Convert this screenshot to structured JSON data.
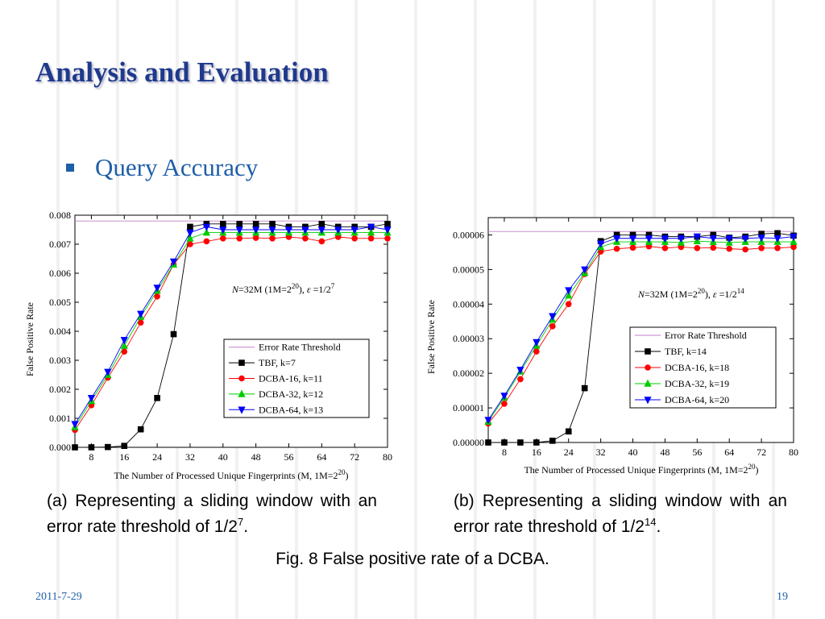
{
  "title": "Analysis and Evaluation",
  "bullet": "Query Accuracy",
  "captions": [
    [
      "(a) Representing a sliding window with an error rate threshold of  1/2",
      "7",
      "."
    ],
    [
      "(b) Representing a sliding window with an error rate threshold of  1/2",
      "14",
      "."
    ]
  ],
  "figure_caption": "Fig. 8  False positive rate of a DCBA.",
  "date": "2011-7-29",
  "page_number": "19",
  "chart_data": [
    {
      "type": "line",
      "ylabel": "False Positive Rate",
      "xlabel": [
        "The Number of Processed Unique Fingerprints (M, 1M=2",
        "20",
        ")"
      ],
      "annotation": [
        "N",
        "=32M (1M=2",
        "20",
        "), ",
        "ε",
        " =1/2",
        "7"
      ],
      "x": [
        4,
        8,
        12,
        16,
        20,
        24,
        28,
        32,
        36,
        40,
        44,
        48,
        52,
        56,
        60,
        64,
        68,
        72,
        76,
        80
      ],
      "xlim": [
        4,
        80
      ],
      "xticks": [
        8,
        16,
        24,
        32,
        40,
        48,
        56,
        64,
        72,
        80
      ],
      "ylim": [
        0,
        0.008
      ],
      "yticks": [
        {
          "value": 0,
          "label": "0.000"
        },
        0.001,
        0.002,
        0.003,
        0.004,
        0.005,
        0.006,
        0.007,
        0.008
      ],
      "series": [
        {
          "name": "Error Rate Threshold",
          "color": "#c080c8",
          "marker": "none",
          "values": [
            0.0078,
            0.0078,
            0.0078,
            0.0078,
            0.0078,
            0.0078,
            0.0078,
            0.0078,
            0.0078,
            0.0078,
            0.0078,
            0.0078,
            0.0078,
            0.0078,
            0.0078,
            0.0078,
            0.0078,
            0.0078,
            0.0078,
            0.0078
          ]
        },
        {
          "name": "TBF, k=7",
          "color": "#000000",
          "marker": "square",
          "values": [
            0,
            0,
            1e-05,
            5e-05,
            0.00062,
            0.0017,
            0.0039,
            0.0076,
            0.0077,
            0.0077,
            0.0077,
            0.0077,
            0.0077,
            0.0076,
            0.0076,
            0.0077,
            0.0076,
            0.0076,
            0.0076,
            0.0077
          ]
        },
        {
          "name": "DCBA-16, k=11",
          "color": "#ff0000",
          "marker": "circle",
          "values": [
            0.0006,
            0.00145,
            0.0024,
            0.0033,
            0.0043,
            0.0052,
            0.0063,
            0.007,
            0.0071,
            0.0072,
            0.0072,
            0.00722,
            0.0072,
            0.00725,
            0.0072,
            0.0071,
            0.00725,
            0.0072,
            0.0072,
            0.0072
          ]
        },
        {
          "name": "DCBA-32, k=12",
          "color": "#00cc00",
          "marker": "triangle-up",
          "values": [
            0.0007,
            0.0016,
            0.0025,
            0.0035,
            0.0045,
            0.0054,
            0.0063,
            0.0072,
            0.0074,
            0.0074,
            0.0074,
            0.0074,
            0.0074,
            0.0074,
            0.0074,
            0.0074,
            0.0074,
            0.0074,
            0.0074,
            0.0074
          ]
        },
        {
          "name": "DCBA-64, k=13",
          "color": "#0000ff",
          "marker": "triangle-down",
          "values": [
            0.0008,
            0.0017,
            0.0026,
            0.0037,
            0.0046,
            0.0055,
            0.0064,
            0.0074,
            0.0076,
            0.0075,
            0.0075,
            0.0075,
            0.0075,
            0.0075,
            0.0075,
            0.0075,
            0.0075,
            0.0075,
            0.0076,
            0.0075
          ]
        }
      ]
    },
    {
      "type": "line",
      "ylabel": "False Positive Rate",
      "xlabel": [
        "The Number of Processed Unique Fingerprints (M, 1M=2",
        "20",
        ")"
      ],
      "annotation": [
        "N",
        "=32M (1M=2",
        "20",
        "), ",
        "ε",
        " =1/2",
        "14"
      ],
      "x": [
        4,
        8,
        12,
        16,
        20,
        24,
        28,
        32,
        36,
        40,
        44,
        48,
        52,
        56,
        60,
        64,
        68,
        72,
        76,
        80
      ],
      "xlim": [
        4,
        80
      ],
      "xticks": [
        8,
        16,
        24,
        32,
        40,
        48,
        56,
        64,
        72,
        80
      ],
      "ylim": [
        0,
        6.5e-05
      ],
      "yticks": [
        {
          "value": 0,
          "label": "0.00000"
        },
        1e-05,
        2e-05,
        3e-05,
        4e-05,
        5e-05,
        6e-05
      ],
      "series": [
        {
          "name": "Error Rate Threshold",
          "color": "#c080c8",
          "marker": "none",
          "values": [
            6.1e-05,
            6.1e-05,
            6.1e-05,
            6.1e-05,
            6.1e-05,
            6.1e-05,
            6.1e-05,
            6.1e-05,
            6.1e-05,
            6.1e-05,
            6.1e-05,
            6.1e-05,
            6.1e-05,
            6.1e-05,
            6.1e-05,
            6.1e-05,
            6.1e-05,
            6.1e-05,
            6.1e-05,
            6.1e-05
          ]
        },
        {
          "name": "TBF, k=14",
          "color": "#000000",
          "marker": "square",
          "values": [
            0,
            0,
            0,
            0,
            5e-07,
            3.2e-06,
            1.57e-05,
            5.82e-05,
            6e-05,
            6e-05,
            6e-05,
            5.95e-05,
            5.95e-05,
            5.95e-05,
            6e-05,
            5.92e-05,
            5.95e-05,
            6.03e-05,
            6.05e-05,
            5.98e-05
          ]
        },
        {
          "name": "DCBA-16, k=18",
          "color": "#ff0000",
          "marker": "circle",
          "values": [
            5.5e-06,
            1.12e-05,
            1.83e-05,
            2.63e-05,
            3.36e-05,
            4e-05,
            4.87e-05,
            5.52e-05,
            5.6e-05,
            5.63e-05,
            5.67e-05,
            5.62e-05,
            5.65e-05,
            5.62e-05,
            5.63e-05,
            5.6e-05,
            5.58e-05,
            5.62e-05,
            5.62e-05,
            5.65e-05
          ]
        },
        {
          "name": "DCBA-32, k=19",
          "color": "#00cc00",
          "marker": "triangle-up",
          "values": [
            6e-06,
            1.3e-05,
            2.05e-05,
            2.8e-05,
            3.55e-05,
            4.25e-05,
            4.9e-05,
            5.65e-05,
            5.8e-05,
            5.8e-05,
            5.8e-05,
            5.8e-05,
            5.78e-05,
            5.82e-05,
            5.8e-05,
            5.78e-05,
            5.8e-05,
            5.8e-05,
            5.8e-05,
            5.8e-05
          ]
        },
        {
          "name": "DCBA-64, k=20",
          "color": "#0000ff",
          "marker": "triangle-down",
          "values": [
            6.5e-06,
            1.35e-05,
            2.1e-05,
            2.9e-05,
            3.65e-05,
            4.4e-05,
            5e-05,
            5.75e-05,
            5.9e-05,
            5.9e-05,
            5.9e-05,
            5.9e-05,
            5.9e-05,
            5.95e-05,
            5.9e-05,
            5.9e-05,
            5.9e-05,
            5.92e-05,
            5.9e-05,
            5.95e-05
          ]
        }
      ]
    }
  ]
}
